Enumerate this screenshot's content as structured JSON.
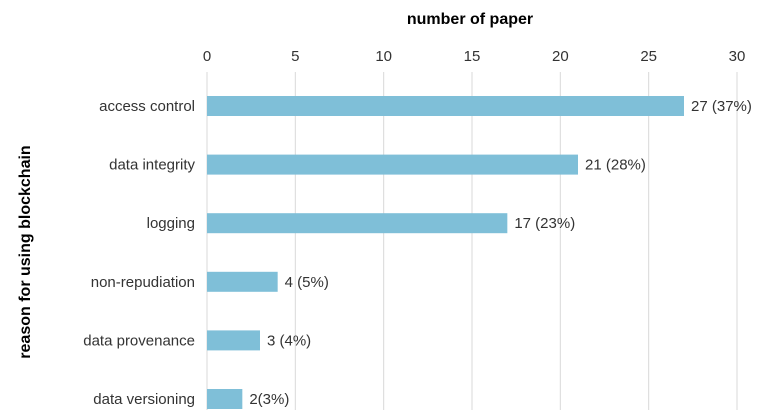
{
  "chart_data": {
    "type": "bar",
    "orientation": "horizontal",
    "xlabel": "number of paper",
    "ylabel": "reason for using blockchain",
    "xlim": [
      0,
      30
    ],
    "x_ticks": [
      "0",
      "5",
      "10",
      "15",
      "20",
      "25",
      "30"
    ],
    "x_axis_position": "top",
    "grid": true,
    "categories": [
      "access control",
      "data integrity",
      "logging",
      "non-repudiation",
      "data provenance",
      "data versioning"
    ],
    "values": [
      27,
      21,
      17,
      4,
      3,
      2
    ],
    "data_labels": [
      "27 (37%)",
      "21 (28%)",
      "17 (23%)",
      "4 (5%)",
      "3 (4%)",
      "2(3%)"
    ],
    "bar_color": "#7fbfd8"
  }
}
